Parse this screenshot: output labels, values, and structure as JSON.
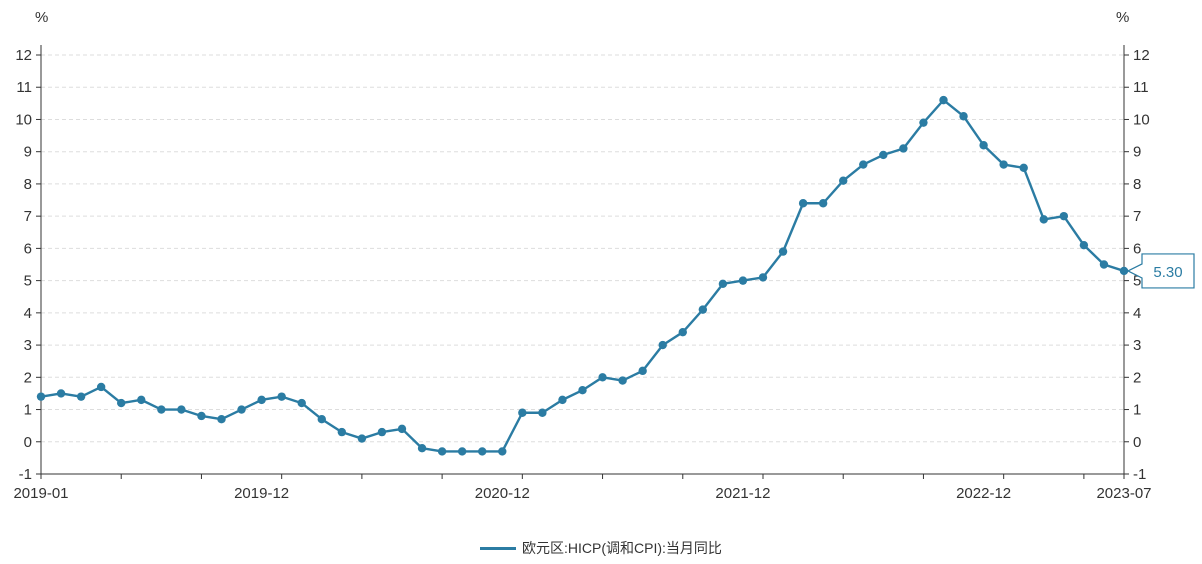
{
  "chart_data": {
    "type": "line",
    "left_axis_unit": "%",
    "right_axis_unit": "%",
    "ylim": [
      -1,
      12
    ],
    "yticks": [
      -1,
      0,
      1,
      2,
      3,
      4,
      5,
      6,
      7,
      8,
      9,
      10,
      11,
      12
    ],
    "x_tick_labels": [
      "2019-01",
      "2019-12",
      "2020-12",
      "2021-12",
      "2022-12",
      "2023-07"
    ],
    "grid": true,
    "legend_position": "bottom-center",
    "colors": {
      "series": "#2b7ca3",
      "grid": "#dddddd",
      "axis": "#333333"
    },
    "series": [
      {
        "name": "欧元区:HICP(调和CPI):当月同比",
        "x": [
          "2019-01",
          "2019-02",
          "2019-03",
          "2019-04",
          "2019-05",
          "2019-06",
          "2019-07",
          "2019-08",
          "2019-09",
          "2019-10",
          "2019-11",
          "2019-12",
          "2020-01",
          "2020-02",
          "2020-03",
          "2020-04",
          "2020-05",
          "2020-06",
          "2020-07",
          "2020-08",
          "2020-09",
          "2020-10",
          "2020-11",
          "2020-12",
          "2021-01",
          "2021-02",
          "2021-03",
          "2021-04",
          "2021-05",
          "2021-06",
          "2021-07",
          "2021-08",
          "2021-09",
          "2021-10",
          "2021-11",
          "2021-12",
          "2022-01",
          "2022-02",
          "2022-03",
          "2022-04",
          "2022-05",
          "2022-06",
          "2022-07",
          "2022-08",
          "2022-09",
          "2022-10",
          "2022-11",
          "2022-12",
          "2023-01",
          "2023-02",
          "2023-03",
          "2023-04",
          "2023-05",
          "2023-06",
          "2023-07"
        ],
        "values": [
          1.4,
          1.5,
          1.4,
          1.7,
          1.2,
          1.3,
          1.0,
          1.0,
          0.8,
          0.7,
          1.0,
          1.3,
          1.4,
          1.2,
          0.7,
          0.3,
          0.1,
          0.3,
          0.4,
          -0.2,
          -0.3,
          -0.3,
          -0.3,
          -0.3,
          0.9,
          0.9,
          1.3,
          1.6,
          2.0,
          1.9,
          2.2,
          3.0,
          3.4,
          4.1,
          4.9,
          5.0,
          5.1,
          5.9,
          7.4,
          7.4,
          8.1,
          8.6,
          8.9,
          9.1,
          9.9,
          10.6,
          10.1,
          9.2,
          8.6,
          8.5,
          6.9,
          7.0,
          6.1,
          5.5,
          5.3
        ]
      }
    ],
    "last_value_label": "5.30"
  }
}
